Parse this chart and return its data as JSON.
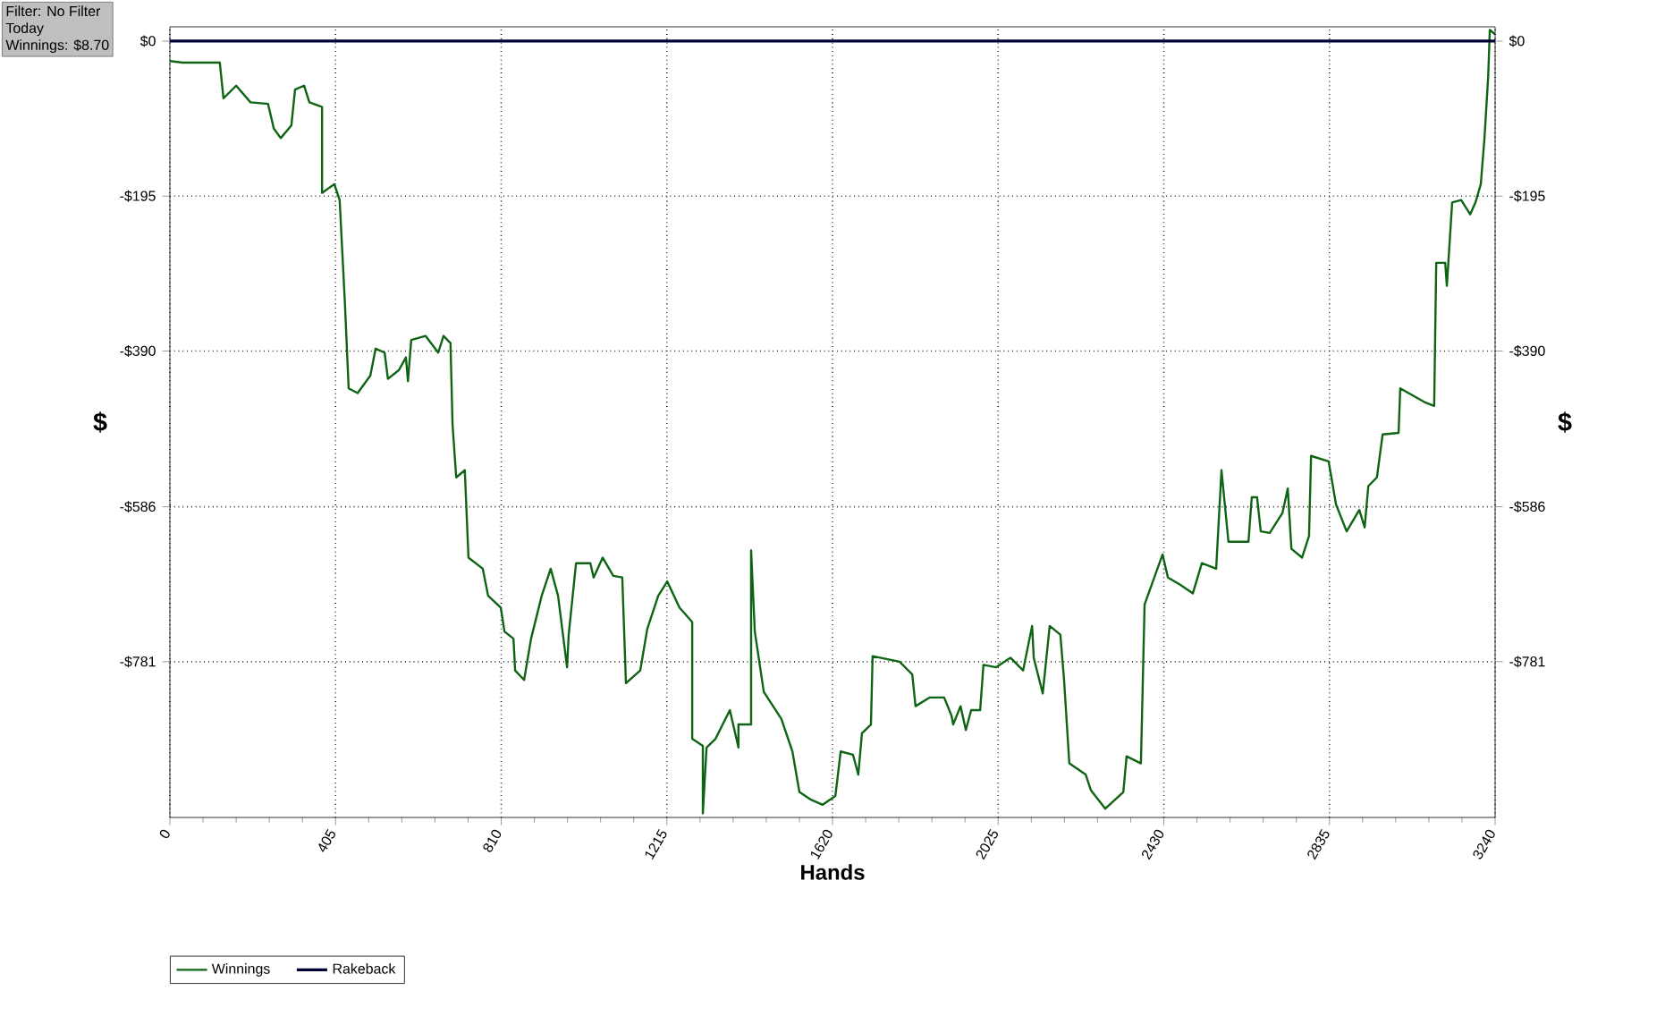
{
  "chart_data": {
    "type": "line",
    "xlabel": "Hands",
    "ylabel": "$",
    "y2label": "$",
    "annotations": [
      "Filter: No Filter",
      "Today",
      "Winnings: $8.70"
    ],
    "xlim": [
      0,
      3240
    ],
    "xticks": [
      0,
      405,
      810,
      1215,
      1620,
      2025,
      2430,
      2835,
      3240
    ],
    "ylim": [
      -977,
      18
    ],
    "yticks": [
      {
        "value": -781,
        "label": "-$781"
      },
      {
        "value": -586,
        "label": "-$586"
      },
      {
        "value": -390,
        "label": "-$390"
      },
      {
        "value": -195,
        "label": "-$195"
      },
      {
        "value": 0,
        "label": "$0"
      }
    ],
    "y2lim": [
      -977,
      18
    ],
    "y2ticks": [
      {
        "value": -781,
        "label": "-$781"
      },
      {
        "value": -586,
        "label": "-$586"
      },
      {
        "value": -390,
        "label": "-$390"
      },
      {
        "value": -195,
        "label": "-$195"
      },
      {
        "value": 0,
        "label": "$0"
      }
    ],
    "grid": true,
    "legend": "bottom left",
    "line_style": "solid",
    "marker": "none",
    "series": [
      {
        "name": "Winnings",
        "color": "#0f6414",
        "x": [
          0,
          31,
          122,
          131,
          162,
          197,
          240,
          254,
          271,
          297,
          306,
          328,
          341,
          372,
          372,
          402,
          415,
          428,
          437,
          459,
          490,
          503,
          525,
          533,
          560,
          577,
          582,
          590,
          625,
          656,
          669,
          686,
          691,
          700,
          721,
          730,
          765,
          778,
          809,
          818,
          840,
          844,
          866,
          883,
          909,
          931,
          949,
          971,
          975,
          993,
          1028,
          1036,
          1058,
          1084,
          1106,
          1115,
          1150,
          1167,
          1194,
          1216,
          1246,
          1277,
          1277,
          1303,
          1303,
          1312,
          1334,
          1369,
          1390,
          1390,
          1421,
          1421,
          1430,
          1452,
          1495,
          1522,
          1539,
          1565,
          1596,
          1627,
          1640,
          1670,
          1683,
          1692,
          1714,
          1718,
          1784,
          1815,
          1823,
          1858,
          1893,
          1911,
          1915,
          1933,
          1946,
          1959,
          1981,
          1989,
          2020,
          2055,
          2086,
          2108,
          2112,
          2134,
          2151,
          2177,
          2186,
          2199,
          2239,
          2252,
          2287,
          2331,
          2339,
          2374,
          2383,
          2427,
          2440,
          2470,
          2501,
          2523,
          2558,
          2571,
          2588,
          2637,
          2645,
          2658,
          2667,
          2689,
          2720,
          2733,
          2742,
          2768,
          2785,
          2790,
          2833,
          2851,
          2877,
          2908,
          2921,
          2930,
          2951,
          2965,
          3004,
          3008,
          3070,
          3091,
          3096,
          3118,
          3122,
          3135,
          3157,
          3179,
          3192,
          3205,
          3214,
          3223,
          3227,
          3240
        ],
        "values": [
          -25,
          -27,
          -27,
          -72,
          -56,
          -77,
          -79,
          -110,
          -122,
          -106,
          -61,
          -56,
          -77,
          -83,
          -191,
          -180,
          -200,
          -331,
          -437,
          -443,
          -421,
          -387,
          -392,
          -425,
          -414,
          -398,
          -428,
          -376,
          -371,
          -392,
          -371,
          -380,
          -482,
          -549,
          -540,
          -650,
          -664,
          -698,
          -713,
          -743,
          -752,
          -792,
          -804,
          -752,
          -698,
          -664,
          -698,
          -788,
          -747,
          -657,
          -657,
          -675,
          -650,
          -673,
          -675,
          -808,
          -792,
          -740,
          -698,
          -680,
          -713,
          -731,
          -878,
          -887,
          -972,
          -889,
          -878,
          -842,
          -889,
          -860,
          -860,
          -641,
          -743,
          -819,
          -853,
          -894,
          -945,
          -954,
          -961,
          -950,
          -894,
          -898,
          -923,
          -871,
          -860,
          -774,
          -781,
          -797,
          -837,
          -826,
          -826,
          -849,
          -860,
          -837,
          -867,
          -842,
          -842,
          -785,
          -788,
          -776,
          -792,
          -736,
          -776,
          -821,
          -736,
          -747,
          -803,
          -909,
          -923,
          -943,
          -966,
          -945,
          -900,
          -909,
          -709,
          -646,
          -675,
          -684,
          -695,
          -657,
          -664,
          -540,
          -630,
          -630,
          -574,
          -574,
          -617,
          -619,
          -594,
          -563,
          -639,
          -650,
          -623,
          -522,
          -529,
          -583,
          -617,
          -590,
          -612,
          -560,
          -549,
          -495,
          -493,
          -437,
          -455,
          -459,
          -279,
          -279,
          -308,
          -203,
          -200,
          -218,
          -203,
          -180,
          -122,
          -45,
          14,
          8.7
        ]
      },
      {
        "name": "Rakeback",
        "color": "#000033",
        "x": [
          0,
          3240
        ],
        "values": [
          0,
          0
        ]
      }
    ]
  }
}
